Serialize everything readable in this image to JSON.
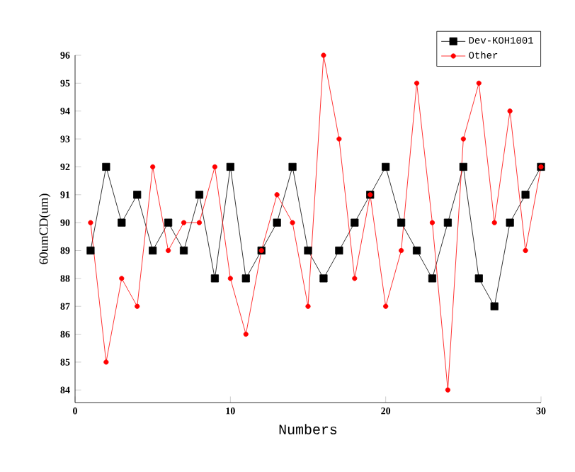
{
  "chart_data": {
    "type": "line",
    "xlabel": "Numbers",
    "ylabel": "60umCD(um)",
    "x": [
      1,
      2,
      3,
      4,
      5,
      6,
      7,
      8,
      9,
      10,
      11,
      12,
      13,
      14,
      15,
      16,
      17,
      18,
      19,
      20,
      21,
      22,
      23,
      24,
      25,
      26,
      27,
      28,
      29,
      30
    ],
    "series": [
      {
        "name": "Dev-KOH1001",
        "color": "#000000",
        "marker": "square",
        "values": [
          89,
          92,
          90,
          91,
          89,
          90,
          89,
          91,
          88,
          92,
          88,
          89,
          90,
          92,
          89,
          88,
          89,
          90,
          91,
          92,
          90,
          89,
          88,
          90,
          92,
          88,
          87,
          90,
          91,
          92
        ]
      },
      {
        "name": "Other",
        "color": "#ff0000",
        "marker": "circle",
        "values": [
          90,
          85,
          88,
          87,
          92,
          89,
          90,
          90,
          92,
          88,
          86,
          89,
          91,
          90,
          87,
          96,
          93,
          88,
          91,
          87,
          89,
          95,
          90,
          84,
          93,
          95,
          90,
          94,
          89,
          92
        ]
      }
    ],
    "xlim": [
      0,
      30
    ],
    "ylim": [
      83.55,
      96
    ],
    "xticks": [
      0,
      10,
      20,
      30
    ],
    "yticks": [
      84,
      85,
      86,
      87,
      88,
      89,
      90,
      91,
      92,
      93,
      94,
      95,
      96
    ],
    "grid": false,
    "legend": "top right",
    "line_style": "solid"
  }
}
